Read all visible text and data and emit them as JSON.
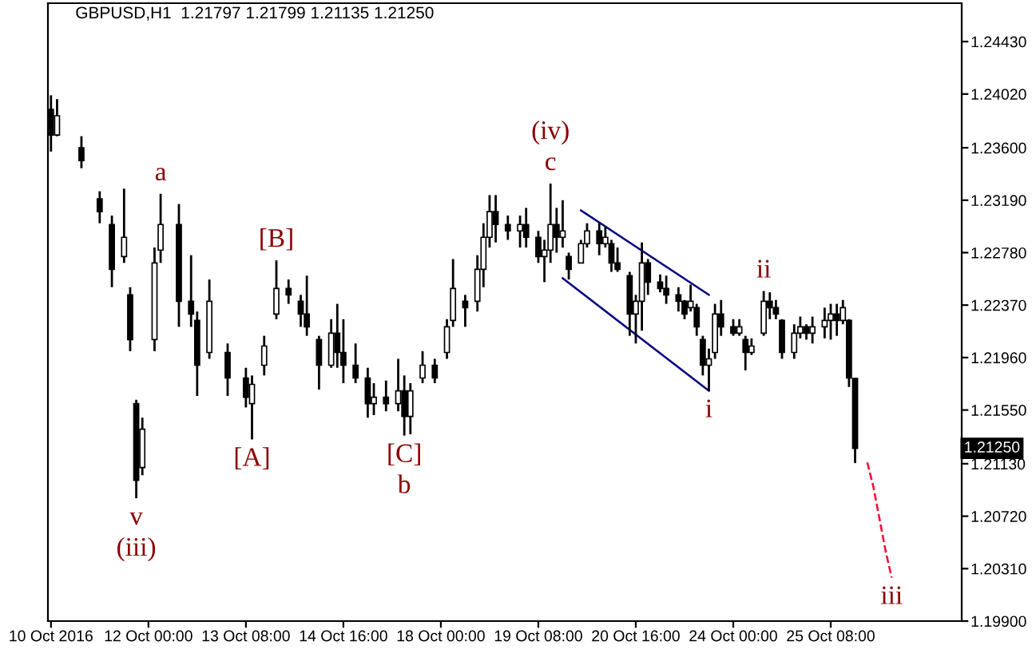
{
  "chart_data": {
    "type": "candlestick",
    "title": "GBPUSD,H1  1.21797 1.21799 1.21135 1.21250",
    "categories": [
      "10 Oct 2016",
      null,
      null,
      null,
      null,
      null,
      null,
      null,
      null,
      null,
      null,
      null,
      null,
      null,
      null,
      null,
      "12 Oct 00:00",
      null,
      null,
      null,
      null,
      null,
      null,
      null,
      null,
      null,
      null,
      null,
      null,
      null,
      null,
      null,
      "13 Oct 08:00",
      null,
      null,
      null,
      null,
      null,
      null,
      null,
      null,
      null,
      null,
      null,
      null,
      null,
      null,
      null,
      "14 Oct 16:00",
      null,
      null,
      null,
      null,
      null,
      null,
      null,
      null,
      null,
      null,
      null,
      null,
      null,
      null,
      null,
      "18 Oct 00:00",
      null,
      null,
      null,
      null,
      null,
      null,
      null,
      null,
      null,
      null,
      null,
      null,
      null,
      null,
      null,
      "19 Oct 08:00",
      null,
      null,
      null,
      null,
      null,
      null,
      null,
      null,
      null,
      null,
      null,
      null,
      null,
      null,
      null,
      "20 Oct 16:00",
      null,
      null,
      null,
      null,
      null,
      null,
      null,
      null,
      null,
      null,
      null,
      null,
      null,
      null,
      null,
      "24 Oct 00:00",
      null,
      null,
      null,
      null,
      null,
      null,
      null,
      null,
      null,
      null,
      null,
      null,
      null,
      null,
      null,
      "25 Oct 08:00",
      null,
      null,
      null,
      null,
      null,
      null,
      null,
      null,
      null,
      null,
      null,
      null,
      null,
      null,
      null,
      null,
      null,
      null,
      null,
      null,
      null
    ],
    "ylim": [
      1.199,
      1.2473
    ],
    "yticks": [
      {
        "value": 1.199,
        "label": "1.19900"
      },
      {
        "value": 1.2031,
        "label": "1.20310"
      },
      {
        "value": 1.2072,
        "label": "1.20720"
      },
      {
        "value": 1.2113,
        "label": "1.21130"
      },
      {
        "value": 1.2155,
        "label": "1.21550"
      },
      {
        "value": 1.2196,
        "label": "1.21960"
      },
      {
        "value": 1.2237,
        "label": "1.22370"
      },
      {
        "value": 1.2278,
        "label": "1.22780"
      },
      {
        "value": 1.2319,
        "label": "1.23190"
      },
      {
        "value": 1.236,
        "label": "1.23600"
      },
      {
        "value": 1.2402,
        "label": "1.24020"
      },
      {
        "value": 1.2443,
        "label": "1.24430"
      }
    ],
    "grid": false,
    "series": [
      {
        "color": "#000000",
        "ohlc": [
          [
            1.239,
            1.2401,
            1.2357,
            1.237
          ],
          [
            1.237,
            1.2398,
            1.2369,
            1.2385
          ],
          null,
          null,
          null,
          [
            1.236,
            1.2369,
            1.2344,
            1.235
          ],
          null,
          null,
          [
            1.232,
            1.2326,
            1.2301,
            1.231
          ],
          null,
          [
            1.23,
            1.2307,
            1.2251,
            1.2265
          ],
          null,
          [
            1.2275,
            1.2328,
            1.227,
            1.229
          ],
          [
            1.2245,
            1.2251,
            1.2201,
            1.221
          ],
          [
            1.216,
            1.2163,
            1.2086,
            1.21
          ],
          [
            1.211,
            1.2149,
            1.2104,
            1.214
          ],
          null,
          [
            1.221,
            1.2282,
            1.2201,
            1.227
          ],
          [
            1.228,
            1.2324,
            1.227,
            1.23
          ],
          null,
          null,
          [
            1.23,
            1.2316,
            1.222,
            1.224
          ],
          null,
          [
            1.224,
            1.2276,
            1.222,
            1.223
          ],
          [
            1.2225,
            1.2232,
            1.2166,
            1.219
          ],
          null,
          [
            1.22,
            1.2257,
            1.2195,
            1.224
          ],
          null,
          null,
          [
            1.22,
            1.2207,
            1.2166,
            1.218
          ],
          null,
          null,
          [
            1.218,
            1.2188,
            1.2157,
            1.2165
          ],
          [
            1.216,
            1.2182,
            1.2132,
            1.2175
          ],
          null,
          [
            1.219,
            1.2213,
            1.2182,
            1.2205
          ],
          null,
          [
            1.223,
            1.2272,
            1.2226,
            1.225
          ],
          null,
          [
            1.225,
            1.2257,
            1.2238,
            1.2245
          ],
          null,
          [
            1.224,
            1.2245,
            1.222,
            1.223
          ],
          [
            1.223,
            1.226,
            1.2213,
            1.222
          ],
          null,
          [
            1.221,
            1.2213,
            1.2171,
            1.219
          ],
          null,
          [
            1.219,
            1.2226,
            1.2188,
            1.2215
          ],
          [
            1.2215,
            1.2238,
            1.2188,
            1.22
          ],
          [
            1.22,
            1.2226,
            1.2176,
            1.219
          ],
          null,
          [
            1.219,
            1.2207,
            1.2176,
            1.218
          ],
          null,
          [
            1.218,
            1.2188,
            1.2149,
            1.216
          ],
          [
            1.216,
            1.2176,
            1.2151,
            1.2165
          ],
          null,
          [
            1.2165,
            1.2178,
            1.2154,
            1.216
          ],
          null,
          [
            1.216,
            1.2195,
            1.2154,
            1.217
          ],
          [
            1.217,
            1.2182,
            1.2135,
            1.215
          ],
          [
            1.215,
            1.2176,
            1.2136,
            1.217
          ],
          null,
          [
            1.218,
            1.2201,
            1.2176,
            1.219
          ],
          null,
          [
            1.219,
            1.2195,
            1.2176,
            1.218
          ],
          null,
          [
            1.22,
            1.2226,
            1.2195,
            1.222
          ],
          [
            1.2225,
            1.2273,
            1.222,
            1.225
          ],
          null,
          [
            1.224,
            1.2245,
            1.222,
            1.2235
          ],
          null,
          [
            1.224,
            1.2276,
            1.2232,
            1.2265
          ],
          [
            1.2265,
            1.2301,
            1.2251,
            1.229
          ],
          [
            1.229,
            1.2323,
            1.2282,
            1.231
          ],
          [
            1.231,
            1.2323,
            1.2286,
            1.23
          ],
          null,
          [
            1.23,
            1.2307,
            1.2288,
            1.2295
          ],
          null,
          [
            1.2295,
            1.2307,
            1.2282,
            1.23
          ],
          [
            1.23,
            1.2313,
            1.2282,
            1.229
          ],
          null,
          [
            1.229,
            1.2295,
            1.227,
            1.2275
          ],
          [
            1.2275,
            1.2288,
            1.2255,
            1.228
          ],
          [
            1.228,
            1.2332,
            1.227,
            1.23
          ],
          [
            1.23,
            1.2313,
            1.2278,
            1.229
          ],
          [
            1.229,
            1.2319,
            1.2282,
            1.2295
          ],
          [
            1.2275,
            1.2278,
            1.2257,
            1.2265
          ],
          null,
          [
            1.227,
            1.2288,
            1.227,
            1.2285
          ],
          [
            1.2285,
            1.2301,
            1.2282,
            1.2295
          ],
          null,
          [
            1.2295,
            1.2301,
            1.2276,
            1.2285
          ],
          [
            1.2285,
            1.2298,
            1.2282,
            1.229
          ],
          [
            1.2285,
            1.2288,
            1.2263,
            1.227
          ],
          [
            1.227,
            1.2282,
            1.2263,
            1.2265
          ],
          null,
          [
            1.226,
            1.2263,
            1.2213,
            1.223
          ],
          [
            1.223,
            1.2245,
            1.2207,
            1.224
          ],
          [
            1.224,
            1.2286,
            1.2217,
            1.227
          ],
          [
            1.227,
            1.2273,
            1.2245,
            1.2255
          ],
          null,
          [
            1.2255,
            1.2261,
            1.2247,
            1.225
          ],
          [
            1.225,
            1.226,
            1.2238,
            1.2245
          ],
          null,
          [
            1.2245,
            1.2251,
            1.2232,
            1.224
          ],
          [
            1.224,
            1.2241,
            1.2226,
            1.223
          ],
          [
            1.2235,
            1.2253,
            1.2232,
            1.224
          ],
          [
            1.2235,
            1.2238,
            1.2213,
            1.222
          ],
          [
            1.221,
            1.2213,
            1.2182,
            1.219
          ],
          [
            1.219,
            1.2203,
            1.217,
            1.2195
          ],
          [
            1.22,
            1.2238,
            1.2195,
            1.223
          ],
          [
            1.223,
            1.2241,
            1.2213,
            1.222
          ],
          null,
          [
            1.222,
            1.2226,
            1.2213,
            1.2215
          ],
          [
            1.2215,
            1.2226,
            1.2213,
            1.222
          ],
          [
            1.221,
            1.2213,
            1.2186,
            1.22
          ],
          [
            1.22,
            1.2211,
            1.2198,
            1.2205
          ],
          null,
          [
            1.2215,
            1.2248,
            1.2213,
            1.224
          ],
          [
            1.224,
            1.2247,
            1.2226,
            1.2235
          ],
          [
            1.2235,
            1.2241,
            1.2226,
            1.223
          ],
          [
            1.2225,
            1.2226,
            1.2195,
            1.22
          ],
          null,
          [
            1.22,
            1.2222,
            1.2195,
            1.2215
          ],
          [
            1.2215,
            1.2228,
            1.2211,
            1.222
          ],
          [
            1.222,
            1.2222,
            1.221,
            1.2215
          ],
          [
            1.2215,
            1.2228,
            1.2207,
            1.222
          ],
          null,
          [
            1.222,
            1.2235,
            1.2211,
            1.2225
          ],
          [
            1.2225,
            1.2238,
            1.221,
            1.223
          ],
          [
            1.223,
            1.2238,
            1.2213,
            1.2225
          ],
          [
            1.2225,
            1.2241,
            1.2222,
            1.2235
          ],
          [
            1.2225,
            1.2226,
            1.2173,
            1.218
          ],
          [
            1.21797,
            1.21799,
            1.21135,
            1.2125
          ],
          null,
          null,
          null,
          null,
          null,
          null,
          null,
          null,
          null,
          null,
          null,
          null,
          null,
          null,
          null,
          null,
          null
        ]
      },
      {
        "type": "line",
        "color": "#000080",
        "line_style": "solid",
        "values": [
          null,
          null,
          null,
          null,
          null,
          null,
          null,
          null,
          null,
          null,
          null,
          null,
          null,
          null,
          null,
          null,
          null,
          null,
          null,
          null,
          null,
          null,
          null,
          null,
          null,
          null,
          null,
          null,
          null,
          null,
          null,
          null,
          null,
          null,
          null,
          null,
          null,
          null,
          null,
          null,
          null,
          null,
          null,
          null,
          null,
          null,
          null,
          null,
          null,
          null,
          null,
          null,
          null,
          null,
          null,
          null,
          null,
          null,
          null,
          null,
          null,
          null,
          null,
          null,
          null,
          null,
          null,
          null,
          null,
          null,
          null,
          null,
          null,
          null,
          null,
          null,
          null,
          null,
          null,
          null,
          null,
          null,
          null,
          null,
          null,
          null,
          null,
          1.2311,
          null,
          null,
          null,
          null,
          null,
          null,
          null,
          null,
          null,
          null,
          null,
          null,
          null,
          null,
          null,
          null,
          null,
          null,
          null,
          null,
          1.2245,
          null,
          null,
          null,
          null,
          null,
          null,
          null,
          null,
          null,
          null,
          null,
          null,
          null,
          null,
          null,
          null,
          null,
          null,
          null,
          null,
          null,
          null,
          null,
          null,
          null,
          null,
          null,
          null,
          null,
          null,
          null,
          null,
          null,
          null,
          null,
          null,
          null,
          null,
          null,
          null,
          null
        ]
      },
      {
        "type": "line",
        "color": "#000080",
        "line_style": "solid",
        "values": [
          null,
          null,
          null,
          null,
          null,
          null,
          null,
          null,
          null,
          null,
          null,
          null,
          null,
          null,
          null,
          null,
          null,
          null,
          null,
          null,
          null,
          null,
          null,
          null,
          null,
          null,
          null,
          null,
          null,
          null,
          null,
          null,
          null,
          null,
          null,
          null,
          null,
          null,
          null,
          null,
          null,
          null,
          null,
          null,
          null,
          null,
          null,
          null,
          null,
          null,
          null,
          null,
          null,
          null,
          null,
          null,
          null,
          null,
          null,
          null,
          null,
          null,
          null,
          null,
          null,
          null,
          null,
          null,
          null,
          null,
          null,
          null,
          null,
          null,
          null,
          null,
          null,
          null,
          null,
          null,
          null,
          null,
          null,
          null,
          1.2258,
          null,
          null,
          null,
          null,
          null,
          null,
          null,
          null,
          null,
          null,
          null,
          null,
          null,
          null,
          null,
          null,
          null,
          null,
          null,
          null,
          null,
          null,
          null,
          1.217,
          null,
          null,
          null,
          null,
          null,
          null,
          null,
          null,
          null,
          null,
          null,
          null,
          null,
          null,
          null,
          null,
          null,
          null,
          null,
          null,
          null,
          null,
          null,
          null,
          null,
          null,
          null,
          null,
          null,
          null,
          null,
          null,
          null,
          null,
          null,
          null,
          null,
          null,
          null,
          null,
          null
        ]
      },
      {
        "type": "line",
        "color": "#ff0033",
        "line_style": "dashed",
        "values": [
          null,
          null,
          null,
          null,
          null,
          null,
          null,
          null,
          null,
          null,
          null,
          null,
          null,
          null,
          null,
          null,
          null,
          null,
          null,
          null,
          null,
          null,
          null,
          null,
          null,
          null,
          null,
          null,
          null,
          null,
          null,
          null,
          null,
          null,
          null,
          null,
          null,
          null,
          null,
          null,
          null,
          null,
          null,
          null,
          null,
          null,
          null,
          null,
          null,
          null,
          null,
          null,
          null,
          null,
          null,
          null,
          null,
          null,
          null,
          null,
          null,
          null,
          null,
          null,
          null,
          null,
          null,
          null,
          null,
          null,
          null,
          null,
          null,
          null,
          null,
          null,
          null,
          null,
          null,
          null,
          null,
          null,
          null,
          null,
          null,
          null,
          null,
          null,
          null,
          null,
          null,
          null,
          null,
          null,
          null,
          null,
          null,
          null,
          null,
          null,
          null,
          null,
          null,
          null,
          null,
          null,
          null,
          null,
          null,
          null,
          null,
          null,
          null,
          null,
          null,
          null,
          null,
          null,
          null,
          null,
          null,
          null,
          null,
          null,
          null,
          null,
          null,
          null,
          null,
          null,
          null,
          null,
          null,
          null,
          1.2114,
          1.2095,
          1.207,
          1.2045,
          1.2024,
          null,
          null,
          null,
          null,
          null,
          null,
          null,
          null,
          null,
          null,
          null
        ]
      }
    ],
    "annotations": [
      {
        "text": "v",
        "y": 1.2086
      },
      {
        "text": "(iii)",
        "y": 1.2086
      },
      {
        "text": "a",
        "y": 1.2324
      },
      {
        "text": "[A]",
        "y": 1.2132
      },
      {
        "text": "[B]",
        "y": 1.2272
      },
      {
        "text": "[C]",
        "y": 1.2135
      },
      {
        "text": "b",
        "y": 1.2135
      },
      {
        "text": "c",
        "y": 1.2332
      },
      {
        "text": "(iv)",
        "y": 1.2332
      },
      {
        "text": "i",
        "y": 1.217
      },
      {
        "text": "ii",
        "y": 1.2248
      },
      {
        "text": "iii",
        "y": 1.2024
      },
      {
        "text": "1.21250",
        "y": 1.2125
      }
    ]
  }
}
